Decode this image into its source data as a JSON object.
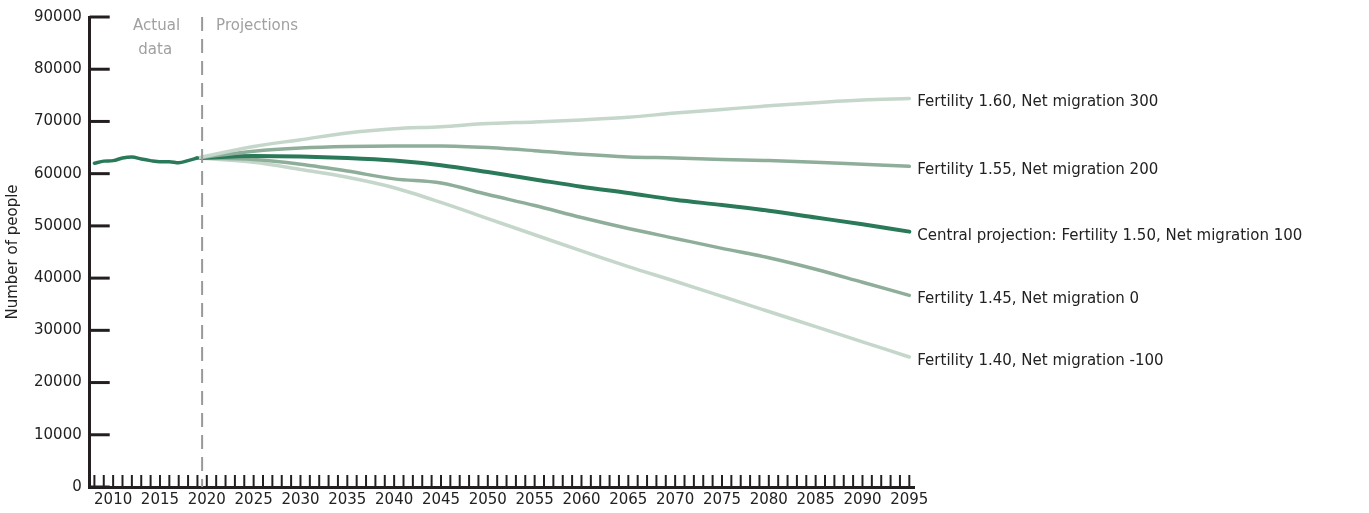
{
  "chart_data": {
    "type": "line",
    "ylabel": "Number of people",
    "xlim": [
      2007.5,
      2095.5
    ],
    "ylim": [
      0,
      90000
    ],
    "yticks": [
      0,
      10000,
      20000,
      30000,
      40000,
      50000,
      60000,
      70000,
      80000,
      90000
    ],
    "xticks": [
      {
        "value": 2008,
        "label": null
      },
      {
        "value": 2009,
        "label": null
      },
      2010,
      {
        "value": 2011,
        "label": null
      },
      {
        "value": 2012,
        "label": null
      },
      {
        "value": 2013,
        "label": null
      },
      {
        "value": 2014,
        "label": null
      },
      2015,
      {
        "value": 2016,
        "label": null
      },
      {
        "value": 2017,
        "label": null
      },
      {
        "value": 2018,
        "label": null
      },
      {
        "value": 2019,
        "label": null
      },
      2020,
      {
        "value": 2021,
        "label": null
      },
      {
        "value": 2022,
        "label": null
      },
      {
        "value": 2023,
        "label": null
      },
      {
        "value": 2024,
        "label": null
      },
      2025,
      {
        "value": 2026,
        "label": null
      },
      {
        "value": 2027,
        "label": null
      },
      {
        "value": 2028,
        "label": null
      },
      {
        "value": 2029,
        "label": null
      },
      2030,
      {
        "value": 2031,
        "label": null
      },
      {
        "value": 2032,
        "label": null
      },
      {
        "value": 2033,
        "label": null
      },
      {
        "value": 2034,
        "label": null
      },
      2035,
      {
        "value": 2036,
        "label": null
      },
      {
        "value": 2037,
        "label": null
      },
      {
        "value": 2038,
        "label": null
      },
      {
        "value": 2039,
        "label": null
      },
      2040,
      {
        "value": 2041,
        "label": null
      },
      {
        "value": 2042,
        "label": null
      },
      {
        "value": 2043,
        "label": null
      },
      {
        "value": 2044,
        "label": null
      },
      2045,
      {
        "value": 2046,
        "label": null
      },
      {
        "value": 2047,
        "label": null
      },
      {
        "value": 2048,
        "label": null
      },
      {
        "value": 2049,
        "label": null
      },
      2050,
      {
        "value": 2051,
        "label": null
      },
      {
        "value": 2052,
        "label": null
      },
      {
        "value": 2053,
        "label": null
      },
      {
        "value": 2054,
        "label": null
      },
      2055,
      {
        "value": 2056,
        "label": null
      },
      {
        "value": 2057,
        "label": null
      },
      {
        "value": 2058,
        "label": null
      },
      {
        "value": 2059,
        "label": null
      },
      2060,
      {
        "value": 2061,
        "label": null
      },
      {
        "value": 2062,
        "label": null
      },
      {
        "value": 2063,
        "label": null
      },
      {
        "value": 2064,
        "label": null
      },
      2065,
      {
        "value": 2066,
        "label": null
      },
      {
        "value": 2067,
        "label": null
      },
      {
        "value": 2068,
        "label": null
      },
      {
        "value": 2069,
        "label": null
      },
      2070,
      {
        "value": 2071,
        "label": null
      },
      {
        "value": 2072,
        "label": null
      },
      {
        "value": 2073,
        "label": null
      },
      {
        "value": 2074,
        "label": null
      },
      2075,
      {
        "value": 2076,
        "label": null
      },
      {
        "value": 2077,
        "label": null
      },
      {
        "value": 2078,
        "label": null
      },
      {
        "value": 2079,
        "label": null
      },
      2080,
      {
        "value": 2081,
        "label": null
      },
      {
        "value": 2082,
        "label": null
      },
      {
        "value": 2083,
        "label": null
      },
      {
        "value": 2084,
        "label": null
      },
      2085,
      {
        "value": 2086,
        "label": null
      },
      {
        "value": 2087,
        "label": null
      },
      {
        "value": 2088,
        "label": null
      },
      {
        "value": 2089,
        "label": null
      },
      2090,
      {
        "value": 2091,
        "label": null
      },
      {
        "value": 2092,
        "label": null
      },
      {
        "value": 2093,
        "label": null
      },
      {
        "value": 2094,
        "label": null
      },
      2095
    ],
    "grid": false,
    "legend": false,
    "line_style": "solid",
    "marker": "none",
    "ref_lines": [
      {
        "axis": "x",
        "value": 2019.5,
        "color": "#999999",
        "line_style": "dashed"
      }
    ],
    "annotations": [
      "Actual data",
      "Projections"
    ],
    "series": [
      {
        "color": "#2a7a5a",
        "x": [
          2008,
          2009,
          2010,
          2011,
          2012,
          2013,
          2014,
          2015,
          2016,
          2017,
          2018,
          2019
        ],
        "values": [
          62000,
          62400,
          62500,
          63000,
          63200,
          62800,
          62500,
          62300,
          62300,
          62100,
          62500,
          63000
        ]
      },
      {
        "name": "Fertility 1.60, Net migration 300",
        "color": "#c5d6cb",
        "x": [
          2019,
          2025,
          2030,
          2035,
          2040,
          2045,
          2050,
          2055,
          2060,
          2065,
          2070,
          2075,
          2080,
          2085,
          2090,
          2095
        ],
        "values": [
          63000,
          65200,
          66500,
          67800,
          68600,
          69000,
          69600,
          69900,
          70300,
          70800,
          71600,
          72300,
          73000,
          73600,
          74100,
          74400
        ]
      },
      {
        "name": "Fertility 1.55, Net migration 200",
        "color": "#8fae9a",
        "x": [
          2019,
          2025,
          2030,
          2035,
          2040,
          2045,
          2050,
          2055,
          2060,
          2065,
          2070,
          2075,
          2080,
          2085,
          2090,
          2095
        ],
        "values": [
          63000,
          64300,
          64900,
          65200,
          65300,
          65300,
          65000,
          64400,
          63700,
          63200,
          63000,
          62700,
          62500,
          62200,
          61800,
          61400
        ]
      },
      {
        "name": "Central projection: Fertility 1.50, Net migration 100",
        "color": "#2a7a5a",
        "x": [
          2019,
          2025,
          2030,
          2035,
          2040,
          2045,
          2050,
          2055,
          2060,
          2065,
          2070,
          2075,
          2080,
          2085,
          2090,
          2095
        ],
        "values": [
          63000,
          63400,
          63300,
          63000,
          62500,
          61600,
          60300,
          58900,
          57500,
          56300,
          55000,
          54000,
          52900,
          51600,
          50300,
          48900
        ]
      },
      {
        "name": "Fertility 1.45, Net migration 0",
        "color": "#8fae9a",
        "x": [
          2019,
          2025,
          2030,
          2035,
          2040,
          2045,
          2050,
          2055,
          2060,
          2065,
          2070,
          2075,
          2080,
          2085,
          2090,
          2095
        ],
        "values": [
          63000,
          62700,
          61800,
          60500,
          59000,
          58200,
          56000,
          53900,
          51600,
          49500,
          47600,
          45700,
          43900,
          41700,
          39200,
          36700
        ]
      },
      {
        "name": "Fertility 1.40, Net migration -100",
        "color": "#c5d6cb",
        "x": [
          2019,
          2025,
          2030,
          2035,
          2040,
          2045,
          2050,
          2055,
          2060,
          2065,
          2070,
          2075,
          2080,
          2085,
          2090,
          2095
        ],
        "values": [
          63000,
          62200,
          60800,
          59300,
          57300,
          54500,
          51400,
          48300,
          45200,
          42200,
          39400,
          36500,
          33600,
          30700,
          27800,
          24900
        ]
      }
    ]
  }
}
